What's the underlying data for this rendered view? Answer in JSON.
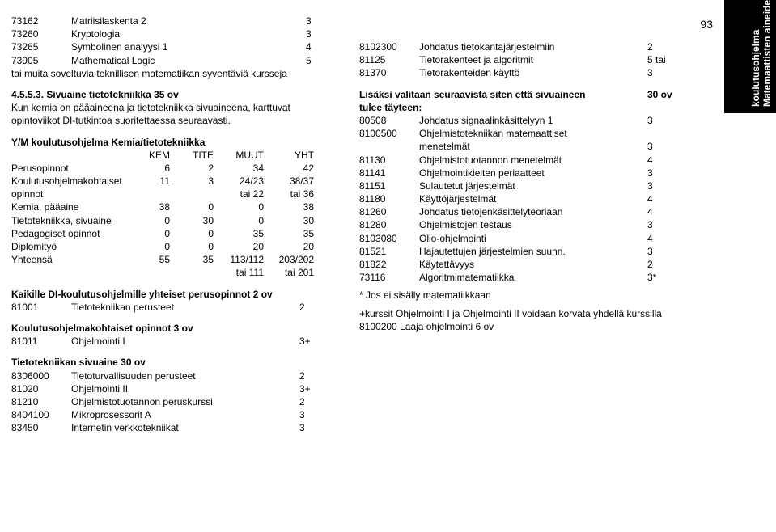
{
  "page_number": "93",
  "sidebar": {
    "line1": "Matemaattisten aineiden",
    "line2": "koulutusohjelma"
  },
  "left": {
    "courses1": [
      {
        "code": "73162",
        "name": "Matriisilaskenta 2",
        "val": "3"
      },
      {
        "code": "73260",
        "name": "Kryptologia",
        "val": "3"
      },
      {
        "code": "73265",
        "name": "Symbolinen analyysi 1",
        "val": "4"
      },
      {
        "code": "73905",
        "name": "Mathematical Logic",
        "val": "5"
      }
    ],
    "courses1_note": "tai muita soveltuvia teknillisen matematiikan syventäviä kursseja",
    "h453": "4.5.5.3. Sivuaine tietotekniikka 35 ov",
    "h453_note": "Kun kemia on pääaineena ja tietotekniikka sivuaineena, karttuvat opintoviikot DI-tutkintoa suoritettaessa seuraavasti.",
    "st_title": "Y/M koulutusohjelma  Kemia/tietotekniikka",
    "st_head": [
      "",
      "KEM",
      "TITE",
      "MUUT",
      "YHT"
    ],
    "st_rows": [
      [
        "Perusopinnot",
        "6",
        "2",
        "34",
        "42"
      ],
      [
        "Koulutusohjelmakohtaiset",
        "11",
        "3",
        "24/23",
        "38/37"
      ],
      [
        "opinnot",
        "",
        "",
        "tai 22",
        "tai 36"
      ],
      [
        "Kemia, pääaine",
        "38",
        "0",
        "0",
        "38"
      ],
      [
        "Tietotekniikka, sivuaine",
        "0",
        "30",
        "0",
        "30"
      ],
      [
        "Pedagogiset opinnot",
        "0",
        "0",
        "35",
        "35"
      ],
      [
        "Diplomityö",
        "0",
        "0",
        "20",
        "20"
      ],
      [
        "Yhteensä",
        "55",
        "35",
        "113/112",
        "203/202"
      ],
      [
        "",
        "",
        "",
        "tai 111",
        "tai 201"
      ]
    ],
    "sec1_h": "Kaikille DI-koulutusohjelmille yhteiset perusopinnot 2 ov",
    "sec1_rows": [
      {
        "code": "81001",
        "name": "Tietotekniikan perusteet",
        "val": "2"
      }
    ],
    "sec2_h": "Koulutusohjelmakohtaiset opinnot 3 ov",
    "sec2_rows": [
      {
        "code": "81011",
        "name": "Ohjelmointi I",
        "val": "3+"
      }
    ],
    "sec3_h": "Tietotekniikan sivuaine 30 ov",
    "sec3_rows": [
      {
        "code": "8306000",
        "name": "Tietoturvallisuuden perusteet",
        "val": "2"
      },
      {
        "code": "81020",
        "name": "Ohjelmointi II",
        "val": "3+"
      },
      {
        "code": "81210",
        "name": "Ohjelmistotuotannon peruskurssi",
        "val": "2"
      },
      {
        "code": "8404100",
        "name": "Mikroprosessorit A",
        "val": "3"
      },
      {
        "code": "83450",
        "name": "Internetin verkkotekniikat",
        "val": "3"
      }
    ]
  },
  "right": {
    "top_rows": [
      {
        "code": "8102300",
        "name": "Johdatus tietokantajärjestelmiin",
        "val": "2"
      },
      {
        "code": "81125",
        "name": "Tietorakenteet ja algoritmit",
        "val": "5 tai"
      },
      {
        "code": "81370",
        "name": "Tietorakenteiden käyttö",
        "val": "3"
      }
    ],
    "extra_h1": "Lisäksi valitaan seuraavista siten että sivuaineen",
    "extra_h1_v": "30 ov",
    "extra_h2": "tulee täyteen:",
    "extra_rows": [
      {
        "code": "80508",
        "name": "Johdatus signaalinkäsittelyyn 1",
        "val": "3"
      },
      {
        "code": "8100500",
        "name": "Ohjelmistotekniikan matemaattiset",
        "val": ""
      },
      {
        "code": "",
        "name": "menetelmät",
        "val": "3"
      },
      {
        "code": "81130",
        "name": "Ohjelmistotuotannon menetelmät",
        "val": "4"
      },
      {
        "code": "81141",
        "name": "Ohjelmointikielten periaatteet",
        "val": "3"
      },
      {
        "code": "81151",
        "name": "Sulautetut järjestelmät",
        "val": "3"
      },
      {
        "code": "81180",
        "name": "Käyttöjärjestelmät",
        "val": "4"
      },
      {
        "code": "81260",
        "name": "Johdatus tietojenkäsittelyteoriaan",
        "val": "4"
      },
      {
        "code": "81280",
        "name": "Ohjelmistojen testaus",
        "val": "3"
      },
      {
        "code": "8103080",
        "name": "Olio-ohjelmointi",
        "val": "4"
      },
      {
        "code": "81521",
        "name": "Hajautettujen järjestelmien suunn.",
        "val": "3"
      },
      {
        "code": "81822",
        "name": "Käytettävyys",
        "val": "2"
      },
      {
        "code": "73116",
        "name": "Algoritmimatematiikka",
        "val": "3*"
      }
    ],
    "note1": "* Jos ei sisälly matematiikkaan",
    "note2": "+kurssit Ohjelmointi I ja Ohjelmointi II voidaan korvata yhdellä kurssilla 8100200 Laaja ohjelmointi 6 ov"
  }
}
